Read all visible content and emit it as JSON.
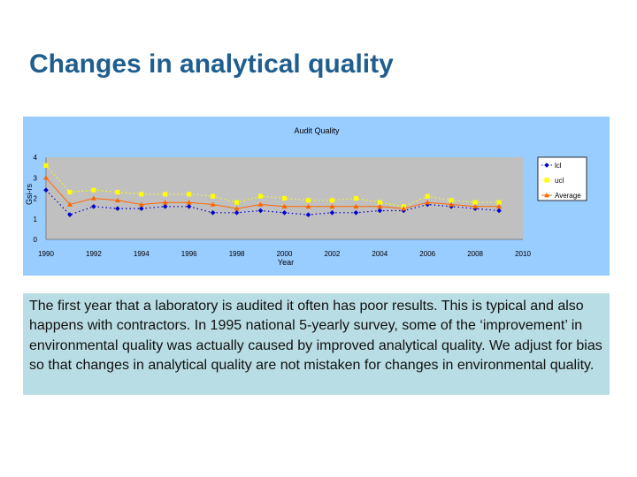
{
  "slide": {
    "title": "Changes in analytical quality",
    "caption": "The first year that a laboratory is audited it often has poor results.  This is typical and also happens with contractors. In 1995 national 5-yearly survey, some of the ‘improvement’ in environmental quality was actually caused by improved analytical quality.  We adjust for bias so that changes in analytical quality are not mistaken for changes in environmental quality."
  },
  "chart_data": {
    "type": "line",
    "title": "Audit Quality",
    "xlabel": "Year",
    "ylabel": "Gsi-rs",
    "xlim": [
      1990,
      2010
    ],
    "ylim": [
      0,
      4
    ],
    "x_ticks": [
      "1990",
      "1992",
      "1994",
      "1996",
      "1998",
      "2000",
      "2002",
      "2004",
      "2006",
      "2008",
      "2010"
    ],
    "y_ticks": [
      "0",
      "1",
      "2",
      "3",
      "4"
    ],
    "grid": false,
    "plot_background": "#c0c0c0",
    "legend_position": "right",
    "series": [
      {
        "name": "lcl",
        "color": "#0000cc",
        "marker": "diamond",
        "line": "dotted",
        "x": [
          1990,
          1991,
          1992,
          1993,
          1994,
          1995,
          1996,
          1997,
          1998,
          1999,
          2000,
          2001,
          2002,
          2003,
          2004,
          2005,
          2006,
          2007,
          2008,
          2009
        ],
        "y": [
          2.4,
          1.2,
          1.6,
          1.5,
          1.5,
          1.6,
          1.6,
          1.3,
          1.3,
          1.4,
          1.3,
          1.2,
          1.3,
          1.3,
          1.4,
          1.4,
          1.7,
          1.6,
          1.5,
          1.4
        ]
      },
      {
        "name": "ucl",
        "color": "#ffff00",
        "marker": "square",
        "line": "dotted",
        "x": [
          1990,
          1991,
          1992,
          1993,
          1994,
          1995,
          1996,
          1997,
          1998,
          1999,
          2000,
          2001,
          2002,
          2003,
          2004,
          2005,
          2006,
          2007,
          2008,
          2009
        ],
        "y": [
          3.6,
          2.3,
          2.4,
          2.3,
          2.2,
          2.2,
          2.2,
          2.1,
          1.8,
          2.1,
          2.0,
          1.9,
          1.9,
          2.0,
          1.8,
          1.6,
          2.1,
          1.9,
          1.8,
          1.8
        ]
      },
      {
        "name": "Average",
        "color": "#ff6600",
        "marker": "triangle",
        "line": "solid",
        "x": [
          1990,
          1991,
          1992,
          1993,
          1994,
          1995,
          1996,
          1997,
          1998,
          1999,
          2000,
          2001,
          2002,
          2003,
          2004,
          2005,
          2006,
          2007,
          2008,
          2009
        ],
        "y": [
          3.0,
          1.7,
          2.0,
          1.9,
          1.7,
          1.8,
          1.8,
          1.7,
          1.5,
          1.7,
          1.6,
          1.6,
          1.6,
          1.6,
          1.6,
          1.5,
          1.8,
          1.7,
          1.6,
          1.6
        ]
      }
    ]
  }
}
